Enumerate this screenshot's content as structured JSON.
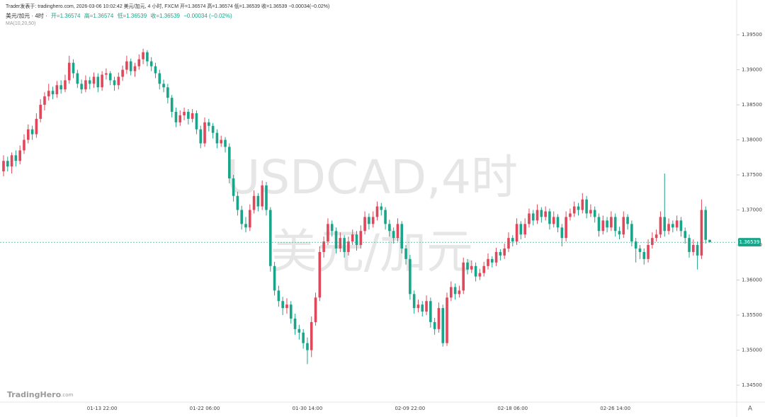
{
  "chart_data": {
    "type": "candlestick",
    "header": "Trader发表于: tradinghero.com, 2026-03-06 10:02:42 美元/加元, 4 小时, FXCM 开=1.36574 高=1.36574 低=1.36539 收=1.36539 −0.00034(−0.02%)",
    "symbol": "美元/加元 · 4时 ·",
    "ohlc_text": [
      "开=1.36574",
      "高=1.36574",
      "低=1.36539",
      "收=1.36539",
      "−0.00034 (−0.02%)"
    ],
    "indicator": "MA(10,20,50)",
    "watermark": [
      "USDCAD,4时",
      "美元/加元"
    ],
    "logo": "TradingHero",
    "logo_suffix": ".com",
    "scale_button": "A",
    "up_color": "#e0475a",
    "down_color": "#1aa58a",
    "last_price": 1.36539,
    "ylim": [
      1.34258,
      1.39854
    ],
    "yticks": [
      {
        "value": 1.395,
        "label": "1.39500"
      },
      {
        "value": 1.39,
        "label": "1.39000"
      },
      {
        "value": 1.385,
        "label": "1.38500"
      },
      {
        "value": 1.38,
        "label": "1.38000"
      },
      {
        "value": 1.375,
        "label": "1.37500"
      },
      {
        "value": 1.37,
        "label": "1.37000"
      },
      {
        "value": 1.365,
        "label": "1.36500"
      },
      {
        "value": 1.36,
        "label": "1.36000"
      },
      {
        "value": 1.355,
        "label": "1.35500"
      },
      {
        "value": 1.35,
        "label": "1.35000"
      },
      {
        "value": 1.345,
        "label": "1.34500"
      }
    ],
    "categories": [
      null,
      null,
      null,
      null,
      null,
      null,
      null,
      null,
      null,
      null,
      null,
      null,
      null,
      null,
      null,
      null,
      null,
      null,
      null,
      null,
      null,
      null,
      null,
      null,
      "01-13 22:00",
      null,
      null,
      null,
      null,
      null,
      null,
      null,
      null,
      null,
      null,
      null,
      null,
      null,
      null,
      null,
      null,
      null,
      null,
      null,
      null,
      null,
      null,
      null,
      null,
      "01-22 06:00",
      null,
      null,
      null,
      null,
      null,
      null,
      null,
      null,
      null,
      null,
      null,
      null,
      null,
      null,
      null,
      null,
      null,
      null,
      null,
      null,
      null,
      null,
      null,
      null,
      "01-30 14:00",
      null,
      null,
      null,
      null,
      null,
      null,
      null,
      null,
      null,
      null,
      null,
      null,
      null,
      null,
      null,
      null,
      null,
      null,
      null,
      null,
      null,
      null,
      null,
      null,
      "02-09 22:00",
      null,
      null,
      null,
      null,
      null,
      null,
      null,
      null,
      null,
      null,
      null,
      null,
      null,
      null,
      null,
      null,
      null,
      null,
      null,
      null,
      null,
      null,
      null,
      null,
      "02-18 06:00",
      null,
      null,
      null,
      null,
      null,
      null,
      null,
      null,
      null,
      null,
      null,
      null,
      null,
      null,
      null,
      null,
      null,
      null,
      null,
      null,
      null,
      null,
      null,
      null,
      "02-26 14:00",
      null,
      null,
      null,
      null,
      null,
      null,
      null,
      null,
      null,
      null,
      null,
      null,
      null,
      null,
      null,
      null,
      null,
      null,
      null,
      null,
      null,
      null,
      null
    ],
    "candles": [
      [
        1.3755,
        1.3778,
        1.3748,
        1.377
      ],
      [
        1.377,
        1.3776,
        1.3755,
        1.3762
      ],
      [
        1.3762,
        1.3782,
        1.3752,
        1.3778
      ],
      [
        1.3778,
        1.3785,
        1.3762,
        1.377
      ],
      [
        1.377,
        1.3792,
        1.3765,
        1.3785
      ],
      [
        1.3785,
        1.3808,
        1.378,
        1.38
      ],
      [
        1.38,
        1.3822,
        1.3795,
        1.3815
      ],
      [
        1.3815,
        1.382,
        1.38,
        1.3808
      ],
      [
        1.3808,
        1.3838,
        1.3803,
        1.383
      ],
      [
        1.383,
        1.3858,
        1.3825,
        1.385
      ],
      [
        1.385,
        1.3868,
        1.3842,
        1.3862
      ],
      [
        1.3862,
        1.388,
        1.3856,
        1.387
      ],
      [
        1.387,
        1.3876,
        1.3858,
        1.3865
      ],
      [
        1.3865,
        1.3884,
        1.386,
        1.3878
      ],
      [
        1.3878,
        1.3885,
        1.3866,
        1.3872
      ],
      [
        1.3872,
        1.3893,
        1.3868,
        1.3885
      ],
      [
        1.3885,
        1.392,
        1.388,
        1.391
      ],
      [
        1.391,
        1.3915,
        1.3888,
        1.3895
      ],
      [
        1.3895,
        1.39,
        1.3874,
        1.388
      ],
      [
        1.388,
        1.3886,
        1.3866,
        1.3872
      ],
      [
        1.3872,
        1.3892,
        1.3868,
        1.3885
      ],
      [
        1.3885,
        1.389,
        1.3872,
        1.388
      ],
      [
        1.388,
        1.3896,
        1.3874,
        1.389
      ],
      [
        1.389,
        1.3895,
        1.3868,
        1.3875
      ],
      [
        1.3875,
        1.3898,
        1.387,
        1.3893
      ],
      [
        1.3893,
        1.3902,
        1.3886,
        1.3895
      ],
      [
        1.3895,
        1.3898,
        1.3878,
        1.3885
      ],
      [
        1.3885,
        1.389,
        1.387,
        1.3878
      ],
      [
        1.3878,
        1.3896,
        1.3872,
        1.389
      ],
      [
        1.389,
        1.3906,
        1.3884,
        1.39
      ],
      [
        1.39,
        1.392,
        1.3894,
        1.3912
      ],
      [
        1.3912,
        1.3916,
        1.3892,
        1.3898
      ],
      [
        1.3898,
        1.391,
        1.389,
        1.3905
      ],
      [
        1.3905,
        1.3922,
        1.39,
        1.3915
      ],
      [
        1.3915,
        1.393,
        1.3908,
        1.3925
      ],
      [
        1.3925,
        1.3928,
        1.3905,
        1.3912
      ],
      [
        1.3912,
        1.3918,
        1.3898,
        1.3905
      ],
      [
        1.3905,
        1.391,
        1.3888,
        1.3895
      ],
      [
        1.3895,
        1.39,
        1.3872,
        1.388
      ],
      [
        1.388,
        1.3886,
        1.3868,
        1.3875
      ],
      [
        1.3875,
        1.388,
        1.3852,
        1.386
      ],
      [
        1.386,
        1.3864,
        1.3832,
        1.384
      ],
      [
        1.384,
        1.3846,
        1.3818,
        1.3825
      ],
      [
        1.3825,
        1.3842,
        1.382,
        1.3835
      ],
      [
        1.3835,
        1.3846,
        1.3828,
        1.384
      ],
      [
        1.384,
        1.3844,
        1.3822,
        1.383
      ],
      [
        1.383,
        1.3844,
        1.3825,
        1.3838
      ],
      [
        1.3838,
        1.3842,
        1.3808,
        1.3815
      ],
      [
        1.3815,
        1.382,
        1.3788,
        1.3795
      ],
      [
        1.3795,
        1.3832,
        1.379,
        1.3825
      ],
      [
        1.3825,
        1.383,
        1.3812,
        1.382
      ],
      [
        1.382,
        1.3824,
        1.3802,
        1.381
      ],
      [
        1.381,
        1.3815,
        1.3788,
        1.3795
      ],
      [
        1.3795,
        1.3806,
        1.379,
        1.38
      ],
      [
        1.38,
        1.3804,
        1.3782,
        1.379
      ],
      [
        1.379,
        1.3795,
        1.3738,
        1.3745
      ],
      [
        1.3745,
        1.375,
        1.3712,
        1.372
      ],
      [
        1.372,
        1.3726,
        1.3692,
        1.37
      ],
      [
        1.37,
        1.3706,
        1.3672,
        1.368
      ],
      [
        1.368,
        1.369,
        1.3668,
        1.3675
      ],
      [
        1.3675,
        1.3708,
        1.367,
        1.37
      ],
      [
        1.37,
        1.3728,
        1.3695,
        1.372
      ],
      [
        1.372,
        1.3724,
        1.3698,
        1.3705
      ],
      [
        1.3705,
        1.3742,
        1.37,
        1.3735
      ],
      [
        1.3735,
        1.374,
        1.3692,
        1.37
      ],
      [
        1.37,
        1.3704,
        1.3612,
        1.362
      ],
      [
        1.362,
        1.3626,
        1.3578,
        1.3585
      ],
      [
        1.3585,
        1.3592,
        1.3562,
        1.357
      ],
      [
        1.357,
        1.3576,
        1.355,
        1.356
      ],
      [
        1.356,
        1.3574,
        1.3552,
        1.3565
      ],
      [
        1.3565,
        1.357,
        1.3538,
        1.3545
      ],
      [
        1.3545,
        1.3552,
        1.3522,
        1.353
      ],
      [
        1.353,
        1.3536,
        1.3515,
        1.3525
      ],
      [
        1.3525,
        1.353,
        1.3502,
        1.351
      ],
      [
        1.351,
        1.3518,
        1.348,
        1.35
      ],
      [
        1.35,
        1.3548,
        1.349,
        1.354
      ],
      [
        1.354,
        1.3582,
        1.3535,
        1.3575
      ],
      [
        1.3575,
        1.3648,
        1.357,
        1.364
      ],
      [
        1.364,
        1.3662,
        1.3632,
        1.3655
      ],
      [
        1.3655,
        1.3688,
        1.365,
        1.368
      ],
      [
        1.368,
        1.3685,
        1.3662,
        1.367
      ],
      [
        1.367,
        1.3675,
        1.3638,
        1.3645
      ],
      [
        1.3645,
        1.3668,
        1.364,
        1.366
      ],
      [
        1.366,
        1.3664,
        1.3632,
        1.364
      ],
      [
        1.364,
        1.3662,
        1.3635,
        1.3655
      ],
      [
        1.3655,
        1.3672,
        1.365,
        1.3665
      ],
      [
        1.3665,
        1.367,
        1.3642,
        1.365
      ],
      [
        1.365,
        1.3678,
        1.3645,
        1.367
      ],
      [
        1.367,
        1.3698,
        1.3665,
        1.369
      ],
      [
        1.369,
        1.3695,
        1.3672,
        1.368
      ],
      [
        1.368,
        1.3698,
        1.3675,
        1.369
      ],
      [
        1.369,
        1.3712,
        1.3685,
        1.3705
      ],
      [
        1.3705,
        1.371,
        1.3692,
        1.37
      ],
      [
        1.37,
        1.3704,
        1.3672,
        1.368
      ],
      [
        1.368,
        1.3686,
        1.3662,
        1.367
      ],
      [
        1.367,
        1.3675,
        1.3652,
        1.366
      ],
      [
        1.366,
        1.3688,
        1.3655,
        1.368
      ],
      [
        1.368,
        1.3684,
        1.3638,
        1.3645
      ],
      [
        1.3645,
        1.365,
        1.3622,
        1.363
      ],
      [
        1.363,
        1.3636,
        1.3572,
        1.358
      ],
      [
        1.358,
        1.3585,
        1.3552,
        1.356
      ],
      [
        1.356,
        1.3572,
        1.3554,
        1.3565
      ],
      [
        1.3565,
        1.357,
        1.3548,
        1.3555
      ],
      [
        1.3555,
        1.3578,
        1.355,
        1.357
      ],
      [
        1.357,
        1.3575,
        1.3532,
        1.354
      ],
      [
        1.354,
        1.3546,
        1.3522,
        1.353
      ],
      [
        1.353,
        1.3568,
        1.3525,
        1.356
      ],
      [
        1.356,
        1.3565,
        1.3505,
        1.351
      ],
      [
        1.351,
        1.3582,
        1.3506,
        1.3575
      ],
      [
        1.3575,
        1.3598,
        1.357,
        1.359
      ],
      [
        1.359,
        1.3595,
        1.3572,
        1.358
      ],
      [
        1.358,
        1.3592,
        1.3575,
        1.3585
      ],
      [
        1.3585,
        1.3632,
        1.358,
        1.3625
      ],
      [
        1.3625,
        1.363,
        1.3608,
        1.3615
      ],
      [
        1.3615,
        1.3628,
        1.361,
        1.362
      ],
      [
        1.362,
        1.3625,
        1.3598,
        1.3605
      ],
      [
        1.3605,
        1.3616,
        1.36,
        1.361
      ],
      [
        1.361,
        1.3626,
        1.3605,
        1.362
      ],
      [
        1.362,
        1.3638,
        1.3615,
        1.363
      ],
      [
        1.363,
        1.3634,
        1.3618,
        1.3625
      ],
      [
        1.3625,
        1.3646,
        1.362,
        1.364
      ],
      [
        1.364,
        1.3644,
        1.3628,
        1.3635
      ],
      [
        1.3635,
        1.3652,
        1.363,
        1.3645
      ],
      [
        1.3645,
        1.3668,
        1.364,
        1.366
      ],
      [
        1.366,
        1.3664,
        1.3648,
        1.3655
      ],
      [
        1.3655,
        1.3688,
        1.365,
        1.368
      ],
      [
        1.368,
        1.3684,
        1.3658,
        1.3665
      ],
      [
        1.3665,
        1.3688,
        1.366,
        1.368
      ],
      [
        1.368,
        1.3702,
        1.3675,
        1.3695
      ],
      [
        1.3695,
        1.37,
        1.3678,
        1.3685
      ],
      [
        1.3685,
        1.3708,
        1.368,
        1.37
      ],
      [
        1.37,
        1.3704,
        1.3682,
        1.369
      ],
      [
        1.369,
        1.3705,
        1.3685,
        1.3698
      ],
      [
        1.3698,
        1.3702,
        1.3672,
        1.368
      ],
      [
        1.368,
        1.3698,
        1.3675,
        1.369
      ],
      [
        1.369,
        1.3694,
        1.3668,
        1.3675
      ],
      [
        1.3675,
        1.368,
        1.3648,
        1.366
      ],
      [
        1.366,
        1.3698,
        1.3655,
        1.369
      ],
      [
        1.369,
        1.3702,
        1.3685,
        1.3695
      ],
      [
        1.3695,
        1.3712,
        1.369,
        1.3705
      ],
      [
        1.3705,
        1.371,
        1.3692,
        1.37
      ],
      [
        1.37,
        1.3724,
        1.3695,
        1.3715
      ],
      [
        1.3715,
        1.372,
        1.3688,
        1.3695
      ],
      [
        1.3695,
        1.3708,
        1.369,
        1.37
      ],
      [
        1.37,
        1.3705,
        1.3682,
        1.369
      ],
      [
        1.369,
        1.3695,
        1.3662,
        1.367
      ],
      [
        1.367,
        1.3692,
        1.3665,
        1.3685
      ],
      [
        1.3685,
        1.369,
        1.3668,
        1.3675
      ],
      [
        1.3675,
        1.3698,
        1.367,
        1.369
      ],
      [
        1.369,
        1.3695,
        1.3662,
        1.367
      ],
      [
        1.367,
        1.3676,
        1.3658,
        1.3665
      ],
      [
        1.3665,
        1.3698,
        1.366,
        1.369
      ],
      [
        1.369,
        1.3694,
        1.3672,
        1.368
      ],
      [
        1.368,
        1.3685,
        1.3648,
        1.3655
      ],
      [
        1.3655,
        1.366,
        1.3625,
        1.3645
      ],
      [
        1.3645,
        1.365,
        1.363,
        1.364
      ],
      [
        1.364,
        1.3645,
        1.3622,
        1.363
      ],
      [
        1.363,
        1.3658,
        1.3625,
        1.365
      ],
      [
        1.365,
        1.3668,
        1.3645,
        1.366
      ],
      [
        1.366,
        1.3672,
        1.3655,
        1.3665
      ],
      [
        1.3665,
        1.3698,
        1.366,
        1.369
      ],
      [
        1.369,
        1.3752,
        1.3662,
        1.367
      ],
      [
        1.367,
        1.3688,
        1.3665,
        1.368
      ],
      [
        1.368,
        1.3685,
        1.3668,
        1.3675
      ],
      [
        1.3675,
        1.3692,
        1.367,
        1.3685
      ],
      [
        1.3685,
        1.369,
        1.3662,
        1.367
      ],
      [
        1.367,
        1.3675,
        1.3652,
        1.366
      ],
      [
        1.366,
        1.3665,
        1.3632,
        1.364
      ],
      [
        1.364,
        1.3658,
        1.3635,
        1.365
      ],
      [
        1.365,
        1.3655,
        1.3615,
        1.3635
      ],
      [
        1.3635,
        1.3715,
        1.363,
        1.37
      ],
      [
        1.37,
        1.3705,
        1.3652,
        1.36574
      ],
      [
        1.36574,
        1.36574,
        1.36539,
        1.36539
      ]
    ]
  }
}
